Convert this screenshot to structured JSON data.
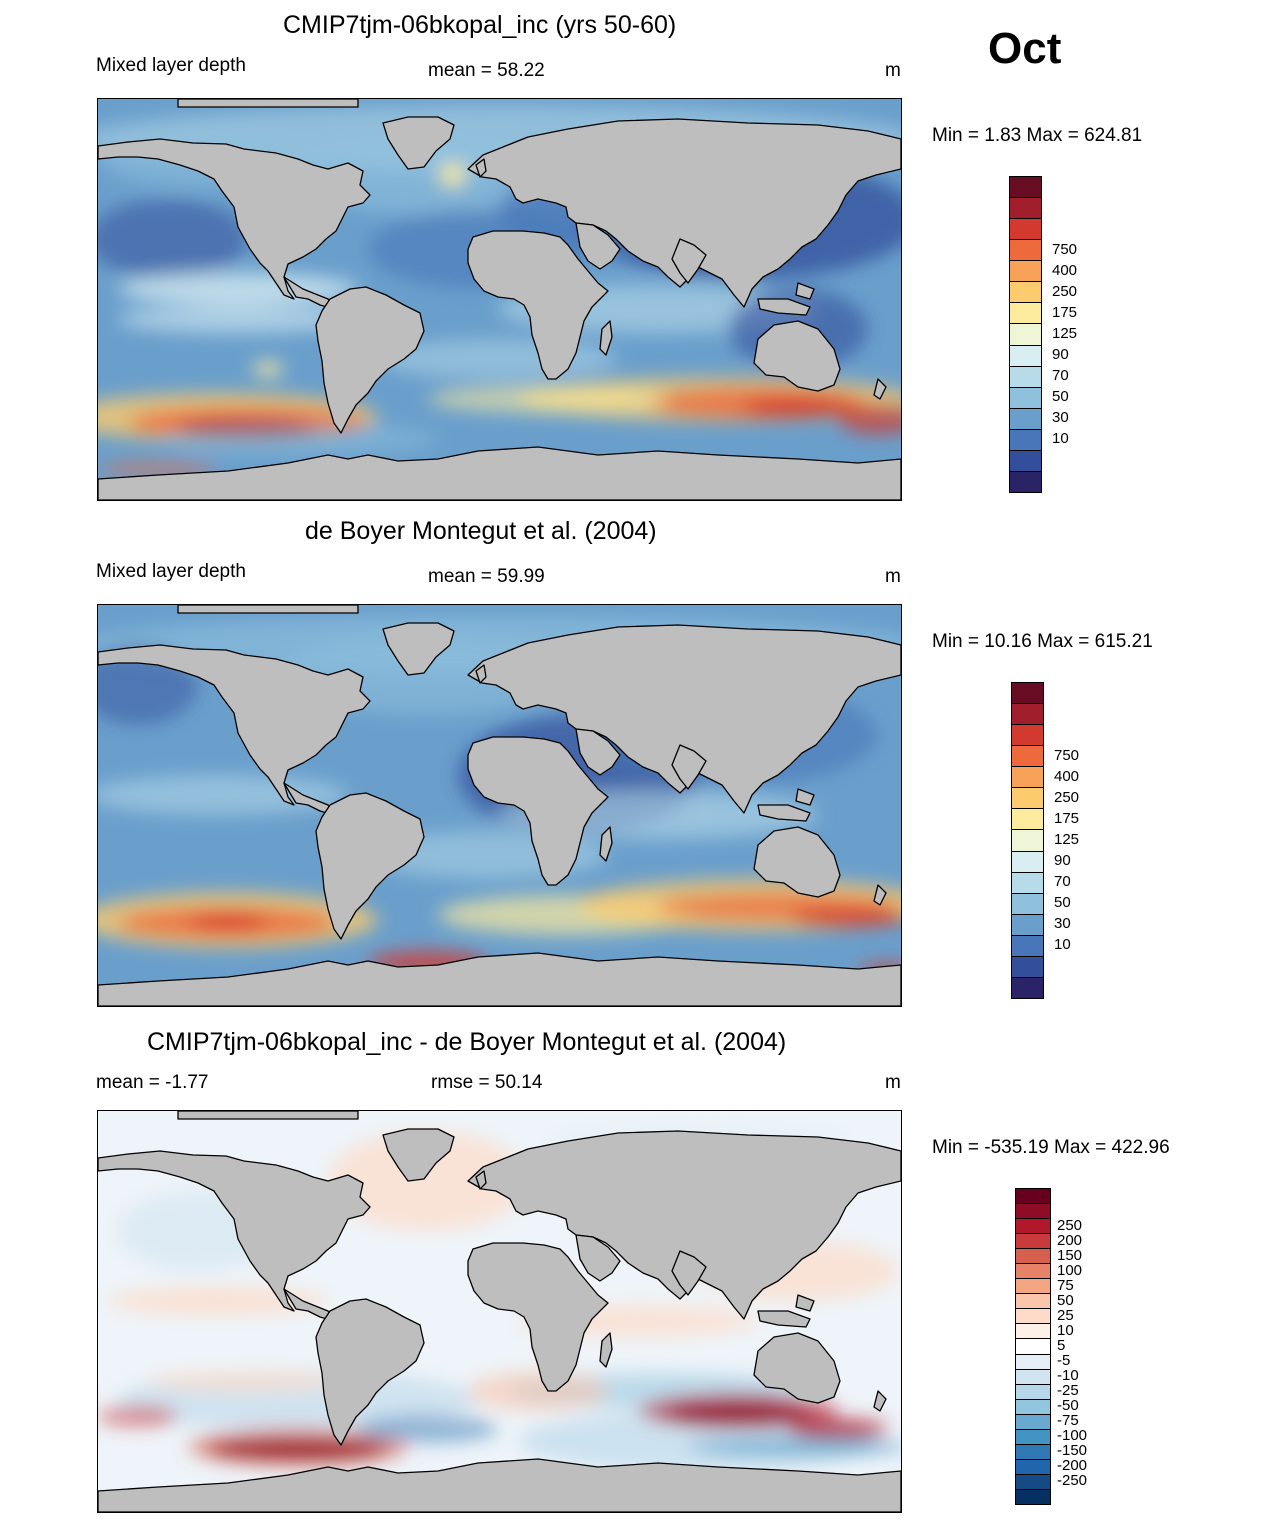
{
  "month": "Oct",
  "panels": [
    {
      "id": "model",
      "title": "CMIP7tjm-06bkopal_inc (yrs 50-60)",
      "left_label": "Mixed layer depth",
      "center_label": "mean =  58.22",
      "units": "m",
      "minmax": "Min =    1.83 Max = 624.81",
      "colorbar": {
        "colors": [
          "#680c23",
          "#a11f2d",
          "#d33a2f",
          "#ee6a3c",
          "#f8a159",
          "#fbcb6d",
          "#fdeb9d",
          "#eef6d7",
          "#d9eef3",
          "#b7dbe9",
          "#8fc1dd",
          "#6a9fcc",
          "#4876b8",
          "#334f9b",
          "#2a2466"
        ],
        "labels": [
          "750",
          "400",
          "250",
          "175",
          "125",
          "90",
          "70",
          "50",
          "30",
          "10"
        ]
      }
    },
    {
      "id": "obs",
      "title": "de Boyer Montegut et al. (2004)",
      "left_label": "Mixed layer depth",
      "center_label": "mean =  59.99",
      "units": "m",
      "minmax": "Min =  10.16 Max = 615.21",
      "colorbar": {
        "colors": [
          "#680c23",
          "#a11f2d",
          "#d33a2f",
          "#ee6a3c",
          "#f8a159",
          "#fbcb6d",
          "#fdeb9d",
          "#eef6d7",
          "#d9eef3",
          "#b7dbe9",
          "#8fc1dd",
          "#6a9fcc",
          "#4876b8",
          "#334f9b",
          "#2a2466"
        ],
        "labels": [
          "750",
          "400",
          "250",
          "175",
          "125",
          "90",
          "70",
          "50",
          "30",
          "10"
        ]
      }
    },
    {
      "id": "diff",
      "title": "CMIP7tjm-06bkopal_inc - de Boyer Montegut et al. (2004)",
      "left_label": "mean =  -1.77",
      "center_label": "rmse =  50.14",
      "units": "m",
      "minmax": "Min = -535.19 Max = 422.96",
      "colorbar": {
        "colors": [
          "#67001f",
          "#8e0c26",
          "#b2182b",
          "#c93a3c",
          "#d6604d",
          "#e58267",
          "#f4a582",
          "#f9c5ab",
          "#fddbc7",
          "#fdf0e6",
          "#ffffff",
          "#e6eff6",
          "#d1e5f0",
          "#b6d6e9",
          "#92c5de",
          "#6aa9cf",
          "#4393c3",
          "#2f78b4",
          "#2166ac",
          "#154b85",
          "#053061"
        ],
        "labels": [
          "250",
          "200",
          "150",
          "100",
          "75",
          "50",
          "25",
          "10",
          "5",
          "-5",
          "-10",
          "-25",
          "-50",
          "-75",
          "-100",
          "-150",
          "-200",
          "-250"
        ]
      }
    }
  ],
  "colors": {
    "land": "#bebebe",
    "coast": "#000000"
  }
}
